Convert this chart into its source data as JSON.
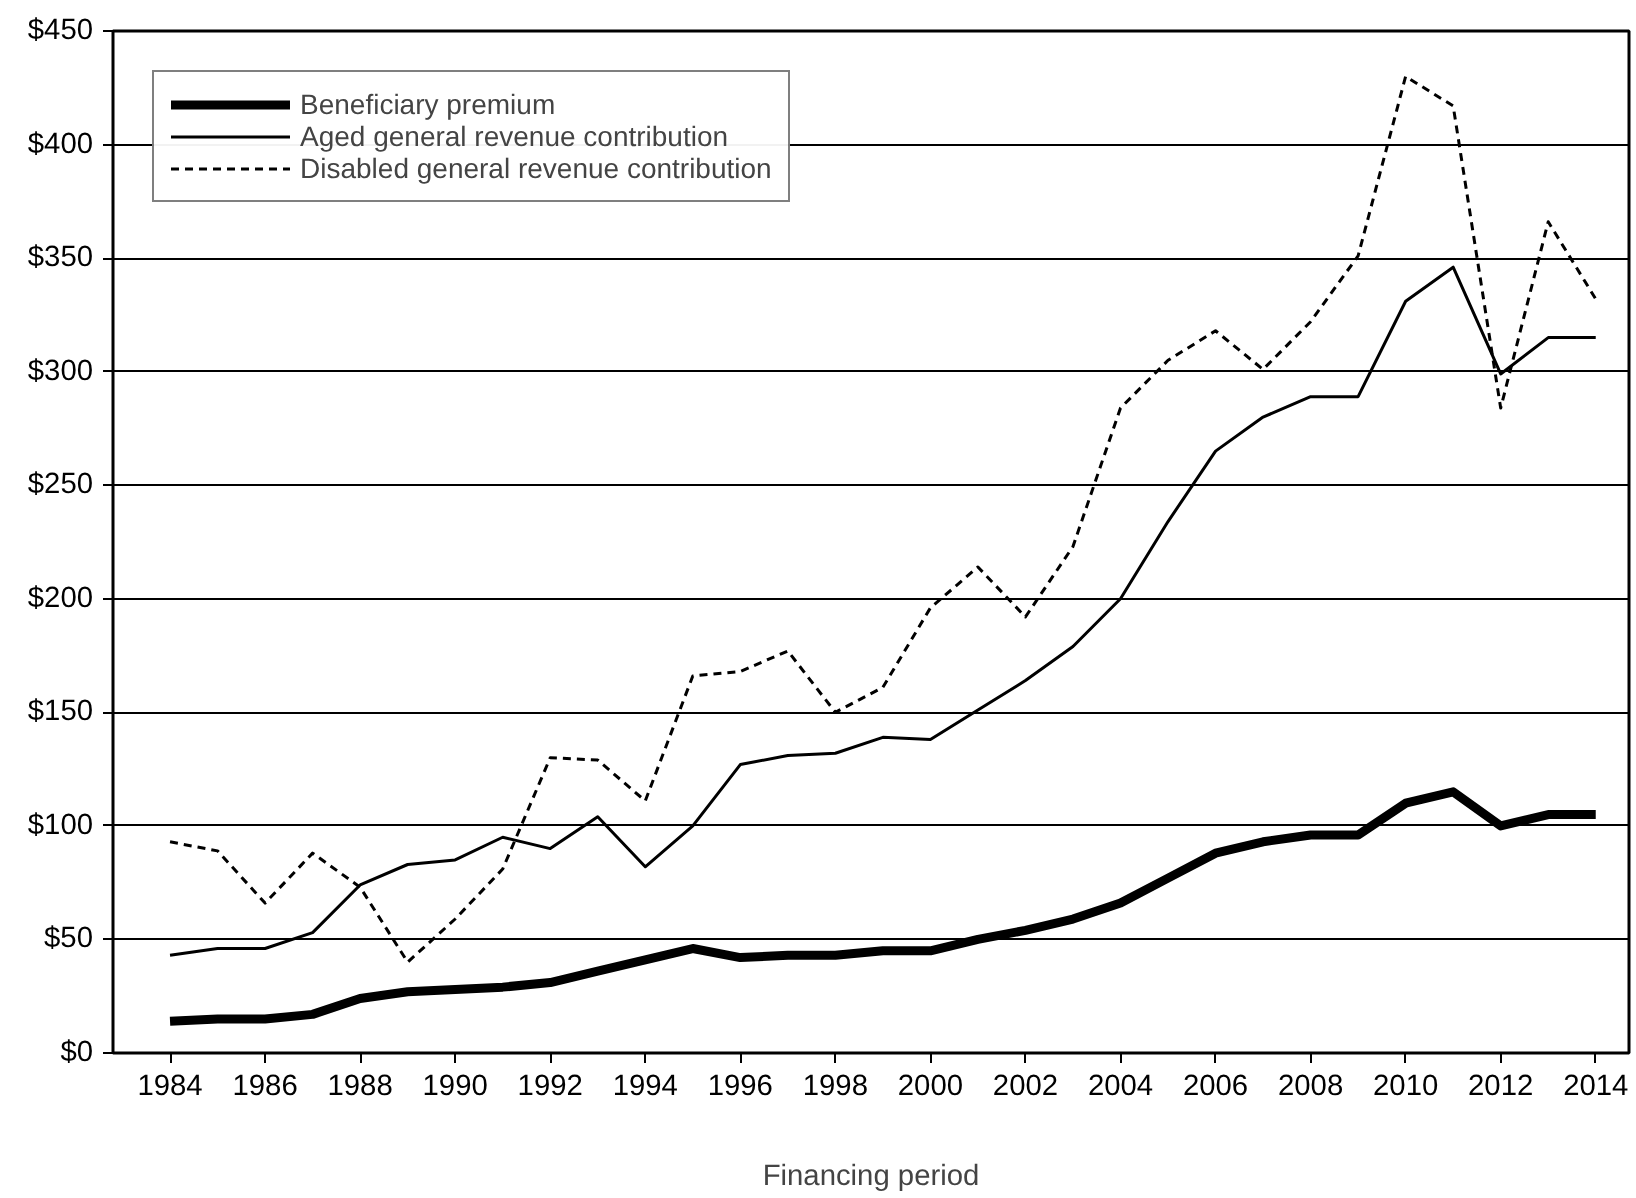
{
  "chart_data": {
    "type": "line",
    "xlabel": "Financing period",
    "x": [
      1984,
      1985,
      1986,
      1987,
      1988,
      1989,
      1990,
      1991,
      1992,
      1993,
      1994,
      1995,
      1996,
      1997,
      1998,
      1999,
      2000,
      2001,
      2002,
      2003,
      2004,
      2005,
      2006,
      2007,
      2008,
      2009,
      2010,
      2011,
      2012,
      2013,
      2014
    ],
    "series": [
      {
        "name": "Beneficiary premium",
        "color": "#000000",
        "line_style": "solid",
        "values": [
          14,
          15,
          15,
          17,
          24,
          27,
          28,
          29,
          31,
          36,
          41,
          46,
          42,
          43,
          43,
          45,
          45,
          50,
          54,
          59,
          66,
          77,
          88,
          93,
          96,
          96,
          110,
          115,
          100,
          105,
          105
        ]
      },
      {
        "name": "Aged general revenue contribution",
        "color": "#000000",
        "line_style": "solid",
        "values": [
          43,
          46,
          46,
          53,
          74,
          83,
          85,
          95,
          90,
          104,
          82,
          100,
          127,
          131,
          132,
          139,
          138,
          151,
          164,
          179,
          200,
          234,
          265,
          280,
          289,
          289,
          331,
          346,
          299,
          315,
          315
        ]
      },
      {
        "name": "Disabled general revenue contribution",
        "color": "#000000",
        "line_style": "dashed",
        "values": [
          93,
          89,
          66,
          88,
          73,
          40,
          59,
          81,
          130,
          129,
          111,
          166,
          168,
          177,
          150,
          161,
          196,
          214,
          192,
          223,
          284,
          305,
          318,
          301,
          322,
          351,
          430,
          417,
          284,
          366,
          332
        ]
      }
    ],
    "xlim": [
      1982.8,
      2014.7
    ],
    "xticks": [
      1984,
      1986,
      1988,
      1990,
      1992,
      1994,
      1996,
      1998,
      2000,
      2002,
      2004,
      2006,
      2008,
      2010,
      2012,
      2014
    ],
    "ylim": [
      0,
      450
    ],
    "yticks": [
      {
        "value": 0,
        "label": "$0"
      },
      {
        "value": 50,
        "label": "$50"
      },
      {
        "value": 100,
        "label": "$100"
      },
      {
        "value": 150,
        "label": "$150"
      },
      {
        "value": 200,
        "label": "$200"
      },
      {
        "value": 250,
        "label": "$250"
      },
      {
        "value": 300,
        "label": "$300"
      },
      {
        "value": 350,
        "label": "$350"
      },
      {
        "value": 400,
        "label": "$400"
      },
      {
        "value": 450,
        "label": "$450"
      }
    ],
    "grid": "y",
    "legend": "top left",
    "marker": "none"
  }
}
